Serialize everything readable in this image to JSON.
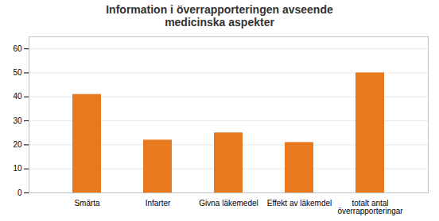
{
  "chart_data": {
    "type": "bar",
    "title": "Information i överrapporteringen avseende\nmedicinska aspekter",
    "categories": [
      "Smärta",
      "Infarter",
      "Givna läkemedel",
      "Effekt av läkemdel",
      "totalt antal\növerrapporteringar"
    ],
    "values": [
      41,
      22,
      25,
      21,
      50
    ],
    "color": "#e8791e",
    "ylim": [
      0,
      65
    ],
    "yticks": [
      0,
      10,
      20,
      30,
      40,
      50,
      60
    ],
    "grid": true
  }
}
